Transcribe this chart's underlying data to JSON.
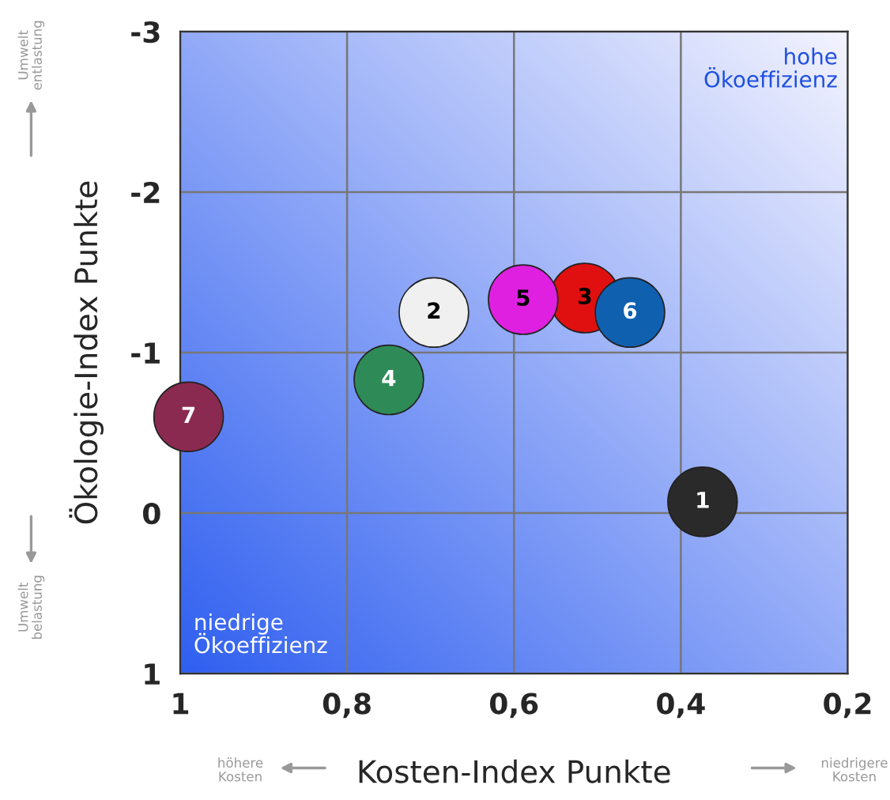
{
  "chart_data": {
    "type": "scatter",
    "xlabel": "Kosten-Index Punkte",
    "ylabel": "Ökologie-Index Punkte",
    "series": [
      {
        "name": "1",
        "color": "#2a2a2a",
        "x": [
          0.374
        ],
        "values": [
          -0.07
        ]
      },
      {
        "name": "2",
        "color": "#f0f0f0",
        "x": [
          0.696
        ],
        "values": [
          -1.25
        ]
      },
      {
        "name": "3",
        "color": "#e01010",
        "x": [
          0.515
        ],
        "values": [
          -1.34
        ]
      },
      {
        "name": "4",
        "color": "#2e8b57",
        "x": [
          0.75
        ],
        "values": [
          -0.83
        ]
      },
      {
        "name": "5",
        "color": "#e020e0",
        "x": [
          0.589
        ],
        "values": [
          -1.33
        ]
      },
      {
        "name": "6",
        "color": "#1060b0",
        "x": [
          0.461
        ],
        "values": [
          -1.25
        ]
      },
      {
        "name": "7",
        "color": "#8b2a50",
        "x": [
          0.99
        ],
        "values": [
          -0.6
        ]
      }
    ],
    "xlim": [
      1,
      0.2
    ],
    "ylim": [
      1,
      -3
    ],
    "xticks": [
      1,
      {
        "value": 0.8,
        "label": "0,8"
      },
      {
        "value": 0.6,
        "label": "0,6"
      },
      {
        "value": 0.4,
        "label": "0,4"
      },
      {
        "value": 0.2,
        "label": "0,2"
      }
    ],
    "yticks": [
      -3,
      -2,
      -1,
      0,
      1
    ],
    "grid": true,
    "marker": "circle",
    "annotations": [
      "hohe\nÖkoeffizienz",
      "niedrige\nÖkoeffizienz",
      "Umwelt\nentlastung",
      "Umwelt\nbelastung",
      "höhere\nKosten",
      "niedrigere\nKosten"
    ]
  }
}
